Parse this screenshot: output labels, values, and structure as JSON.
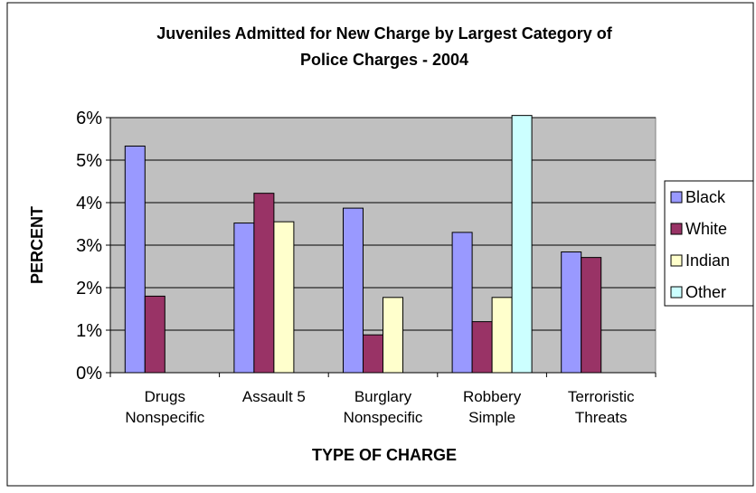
{
  "chart_data": {
    "type": "bar",
    "title_line1": "Juveniles Admitted for New Charge by Largest Category of",
    "title_line2": "Police Charges - 2004",
    "xlabel": "TYPE OF CHARGE",
    "ylabel": "PERCENT",
    "ylim": [
      0,
      6
    ],
    "yticks": [
      "0%",
      "1%",
      "2%",
      "3%",
      "4%",
      "5%",
      "6%"
    ],
    "grid": true,
    "legend_position": "right",
    "categories": [
      [
        "Drugs",
        "Nonspecific"
      ],
      [
        "Assault 5"
      ],
      [
        "Burglary",
        "Nonspecific"
      ],
      [
        "Robbery",
        "Simple"
      ],
      [
        "Terroristic",
        "Threats"
      ]
    ],
    "series": [
      {
        "name": "Black",
        "color": "#9999ff",
        "values": [
          5.33,
          3.52,
          3.87,
          3.3,
          2.84
        ]
      },
      {
        "name": "White",
        "color": "#993366",
        "values": [
          1.8,
          4.22,
          0.89,
          1.2,
          2.71
        ]
      },
      {
        "name": "Indian",
        "color": "#ffffcc",
        "values": [
          0,
          3.55,
          1.77,
          1.77,
          0
        ]
      },
      {
        "name": "Other",
        "color": "#ccffff",
        "values": [
          0,
          0,
          0,
          6.05,
          0
        ]
      }
    ],
    "plot_background": "#c0c0c0"
  }
}
